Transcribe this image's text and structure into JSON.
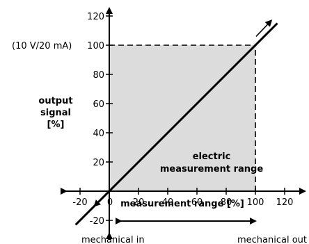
{
  "chart_data": {
    "type": "line",
    "xlabel": "measurement range [%]",
    "ylabel_lines": [
      "output",
      "signal",
      "[%]"
    ],
    "xlim": [
      -25,
      130
    ],
    "ylim": [
      -25,
      130
    ],
    "x_ticks": [
      -20,
      0,
      20,
      40,
      60,
      80,
      100,
      120
    ],
    "x_tick_labels": [
      "-20",
      "0",
      "20",
      "40",
      "60",
      "80",
      "100",
      "120"
    ],
    "y_ticks": [
      -20,
      20,
      40,
      60,
      80,
      100,
      120
    ],
    "y_tick_labels": [
      "-20",
      "20",
      "40",
      "60",
      "80",
      "100",
      "120"
    ],
    "y_100_annotation": "(10 V/20 mA)",
    "series": [
      {
        "x": [
          -23,
          115
        ],
        "y": [
          -23,
          115
        ]
      }
    ],
    "shaded_region": {
      "x": [
        0,
        100
      ],
      "y": [
        0,
        100
      ],
      "label_lines": [
        "electric",
        "measurement range"
      ],
      "color": "#dcdcdc"
    },
    "dashed_lines": [
      {
        "x": [
          0,
          100
        ],
        "y": [
          100,
          100
        ]
      },
      {
        "x": [
          100,
          100
        ],
        "y": [
          0,
          100
        ]
      }
    ],
    "annotations": {
      "mechanical_in": "mechanical in",
      "mechanical_out": "mechanical out"
    },
    "grid": false
  }
}
